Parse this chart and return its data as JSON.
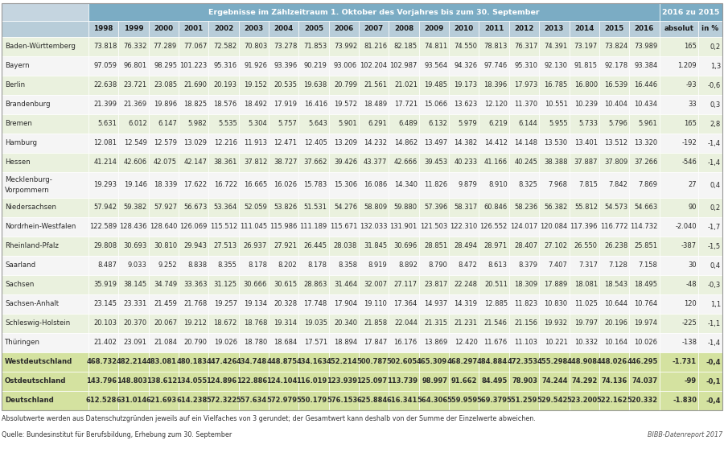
{
  "title_main": "Ergebnisse im Zählzeitraum 1. Oktober des Vorjahres bis zum 30. September",
  "title_right": "2016 zu 2015",
  "footnote": "Absolutwerte werden aus Datenschutzgründen jeweils auf ein Vielfaches von 3 gerundet; der Gesamtwert kann deshalb von der Summe der Einzelwerte abweichen.",
  "source": "Quelle: Bundesinstitut für Berufsbildung, Erhebung zum 30. September",
  "bibb": "BIBB-Datenreport 2017",
  "years": [
    "1998",
    "1999",
    "2000",
    "2001",
    "2002",
    "2003",
    "2004",
    "2005",
    "2006",
    "2007",
    "2008",
    "2009",
    "2010",
    "2011",
    "2012",
    "2013",
    "2014",
    "2015",
    "2016",
    "absolut",
    "in %"
  ],
  "rows": [
    {
      "label": "Baden-Württemberg",
      "bold": false,
      "two_line": false,
      "values": [
        "73.818",
        "76.332",
        "77.289",
        "77.067",
        "72.582",
        "70.803",
        "73.278",
        "71.853",
        "73.992",
        "81.216",
        "82.185",
        "74.811",
        "74.550",
        "78.813",
        "76.317",
        "74.391",
        "73.197",
        "73.824",
        "73.989",
        "165",
        "0,2"
      ]
    },
    {
      "label": "Bayern",
      "bold": false,
      "two_line": false,
      "values": [
        "97.059",
        "96.801",
        "98.295",
        "101.223",
        "95.316",
        "91.926",
        "93.396",
        "90.219",
        "93.006",
        "102.204",
        "102.987",
        "93.564",
        "94.326",
        "97.746",
        "95.310",
        "92.130",
        "91.815",
        "92.178",
        "93.384",
        "1.209",
        "1,3"
      ]
    },
    {
      "label": "Berlin",
      "bold": false,
      "two_line": false,
      "values": [
        "22.638",
        "23.721",
        "23.085",
        "21.690",
        "20.193",
        "19.152",
        "20.535",
        "19.638",
        "20.799",
        "21.561",
        "21.021",
        "19.485",
        "19.173",
        "18.396",
        "17.973",
        "16.785",
        "16.800",
        "16.539",
        "16.446",
        "-93",
        "-0,6"
      ]
    },
    {
      "label": "Brandenburg",
      "bold": false,
      "two_line": false,
      "values": [
        "21.399",
        "21.369",
        "19.896",
        "18.825",
        "18.576",
        "18.492",
        "17.919",
        "16.416",
        "19.572",
        "18.489",
        "17.721",
        "15.066",
        "13.623",
        "12.120",
        "11.370",
        "10.551",
        "10.239",
        "10.404",
        "10.434",
        "33",
        "0,3"
      ]
    },
    {
      "label": "Bremen",
      "bold": false,
      "two_line": false,
      "values": [
        "5.631",
        "6.012",
        "6.147",
        "5.982",
        "5.535",
        "5.304",
        "5.757",
        "5.643",
        "5.901",
        "6.291",
        "6.489",
        "6.132",
        "5.979",
        "6.219",
        "6.144",
        "5.955",
        "5.733",
        "5.796",
        "5.961",
        "165",
        "2,8"
      ]
    },
    {
      "label": "Hamburg",
      "bold": false,
      "two_line": false,
      "values": [
        "12.081",
        "12.549",
        "12.579",
        "13.029",
        "12.216",
        "11.913",
        "12.471",
        "12.405",
        "13.209",
        "14.232",
        "14.862",
        "13.497",
        "14.382",
        "14.412",
        "14.148",
        "13.530",
        "13.401",
        "13.512",
        "13.320",
        "-192",
        "-1,4"
      ]
    },
    {
      "label": "Hessen",
      "bold": false,
      "two_line": false,
      "values": [
        "41.214",
        "42.606",
        "42.075",
        "42.147",
        "38.361",
        "37.812",
        "38.727",
        "37.662",
        "39.426",
        "43.377",
        "42.666",
        "39.453",
        "40.233",
        "41.166",
        "40.245",
        "38.388",
        "37.887",
        "37.809",
        "37.266",
        "-546",
        "-1,4"
      ]
    },
    {
      "label": "Mecklenburg-\nVorpommern",
      "bold": false,
      "two_line": true,
      "values": [
        "19.293",
        "19.146",
        "18.339",
        "17.622",
        "16.722",
        "16.665",
        "16.026",
        "15.783",
        "15.306",
        "16.086",
        "14.340",
        "11.826",
        "9.879",
        "8.910",
        "8.325",
        "7.968",
        "7.815",
        "7.842",
        "7.869",
        "27",
        "0,4"
      ]
    },
    {
      "label": "Niedersachsen",
      "bold": false,
      "two_line": false,
      "values": [
        "57.942",
        "59.382",
        "57.927",
        "56.673",
        "53.364",
        "52.059",
        "53.826",
        "51.531",
        "54.276",
        "58.809",
        "59.880",
        "57.396",
        "58.317",
        "60.846",
        "58.236",
        "56.382",
        "55.812",
        "54.573",
        "54.663",
        "90",
        "0,2"
      ]
    },
    {
      "label": "Nordrhein-Westfalen",
      "bold": false,
      "two_line": false,
      "values": [
        "122.589",
        "128.436",
        "128.640",
        "126.069",
        "115.512",
        "111.045",
        "115.986",
        "111.189",
        "115.671",
        "132.033",
        "131.901",
        "121.503",
        "122.310",
        "126.552",
        "124.017",
        "120.084",
        "117.396",
        "116.772",
        "114.732",
        "-2.040",
        "-1,7"
      ]
    },
    {
      "label": "Rheinland-Pfalz",
      "bold": false,
      "two_line": false,
      "values": [
        "29.808",
        "30.693",
        "30.810",
        "29.943",
        "27.513",
        "26.937",
        "27.921",
        "26.445",
        "28.038",
        "31.845",
        "30.696",
        "28.851",
        "28.494",
        "28.971",
        "28.407",
        "27.102",
        "26.550",
        "26.238",
        "25.851",
        "-387",
        "-1,5"
      ]
    },
    {
      "label": "Saarland",
      "bold": false,
      "two_line": false,
      "values": [
        "8.487",
        "9.033",
        "9.252",
        "8.838",
        "8.355",
        "8.178",
        "8.202",
        "8.178",
        "8.358",
        "8.919",
        "8.892",
        "8.790",
        "8.472",
        "8.613",
        "8.379",
        "7.407",
        "7.317",
        "7.128",
        "7.158",
        "30",
        "0,4"
      ]
    },
    {
      "label": "Sachsen",
      "bold": false,
      "two_line": false,
      "values": [
        "35.919",
        "38.145",
        "34.749",
        "33.363",
        "31.125",
        "30.666",
        "30.615",
        "28.863",
        "31.464",
        "32.007",
        "27.117",
        "23.817",
        "22.248",
        "20.511",
        "18.309",
        "17.889",
        "18.081",
        "18.543",
        "18.495",
        "-48",
        "-0,3"
      ]
    },
    {
      "label": "Sachsen-Anhalt",
      "bold": false,
      "two_line": false,
      "values": [
        "23.145",
        "23.331",
        "21.459",
        "21.768",
        "19.257",
        "19.134",
        "20.328",
        "17.748",
        "17.904",
        "19.110",
        "17.364",
        "14.937",
        "14.319",
        "12.885",
        "11.823",
        "10.830",
        "11.025",
        "10.644",
        "10.764",
        "120",
        "1,1"
      ]
    },
    {
      "label": "Schleswig-Holstein",
      "bold": false,
      "two_line": false,
      "values": [
        "20.103",
        "20.370",
        "20.067",
        "19.212",
        "18.672",
        "18.768",
        "19.314",
        "19.035",
        "20.340",
        "21.858",
        "22.044",
        "21.315",
        "21.231",
        "21.546",
        "21.156",
        "19.932",
        "19.797",
        "20.196",
        "19.974",
        "-225",
        "-1,1"
      ]
    },
    {
      "label": "Thüringen",
      "bold": false,
      "two_line": false,
      "values": [
        "21.402",
        "23.091",
        "21.084",
        "20.790",
        "19.026",
        "18.780",
        "18.684",
        "17.571",
        "18.894",
        "17.847",
        "16.176",
        "13.869",
        "12.420",
        "11.676",
        "11.103",
        "10.221",
        "10.332",
        "10.164",
        "10.026",
        "-138",
        "-1,4"
      ]
    },
    {
      "label": "Westdeutschland",
      "bold": true,
      "two_line": false,
      "values": [
        "468.732",
        "482.214",
        "483.081",
        "480.183",
        "447.426",
        "434.748",
        "448.875",
        "434.163",
        "452.214",
        "500.787",
        "502.605",
        "465.309",
        "468.297",
        "484.884",
        "472.353",
        "455.298",
        "448.908",
        "448.026",
        "446.295",
        "-1.731",
        "-0,4"
      ]
    },
    {
      "label": "Ostdeutschland",
      "bold": true,
      "two_line": false,
      "values": [
        "143.796",
        "148.803",
        "138.612",
        "134.055",
        "124.896",
        "122.886",
        "124.104",
        "116.019",
        "123.939",
        "125.097",
        "113.739",
        "98.997",
        "91.662",
        "84.495",
        "78.903",
        "74.244",
        "74.292",
        "74.136",
        "74.037",
        "-99",
        "-0,1"
      ]
    },
    {
      "label": "Deutschland",
      "bold": true,
      "two_line": false,
      "values": [
        "612.528",
        "631.014",
        "621.693",
        "614.238",
        "572.322",
        "557.634",
        "572.979",
        "550.179",
        "576.153",
        "625.884",
        "616.341",
        "564.306",
        "559.959",
        "569.379",
        "551.259",
        "529.542",
        "523.200",
        "522.162",
        "520.332",
        "-1.830",
        "-0,4"
      ]
    }
  ],
  "header_bg": "#7bacc4",
  "subheader_bg": "#b8cdd9",
  "row_even_bg": "#eaf1de",
  "row_odd_bg": "#f5f5f5",
  "summary_bg": "#d4e2a0",
  "label_col_bg_even": "#eaf1de",
  "label_col_bg_odd": "#f5f5f5",
  "cell_text_color": "#2a2a2a",
  "header_text_color": "#ffffff",
  "subheader_text_color": "#1a1a1a"
}
